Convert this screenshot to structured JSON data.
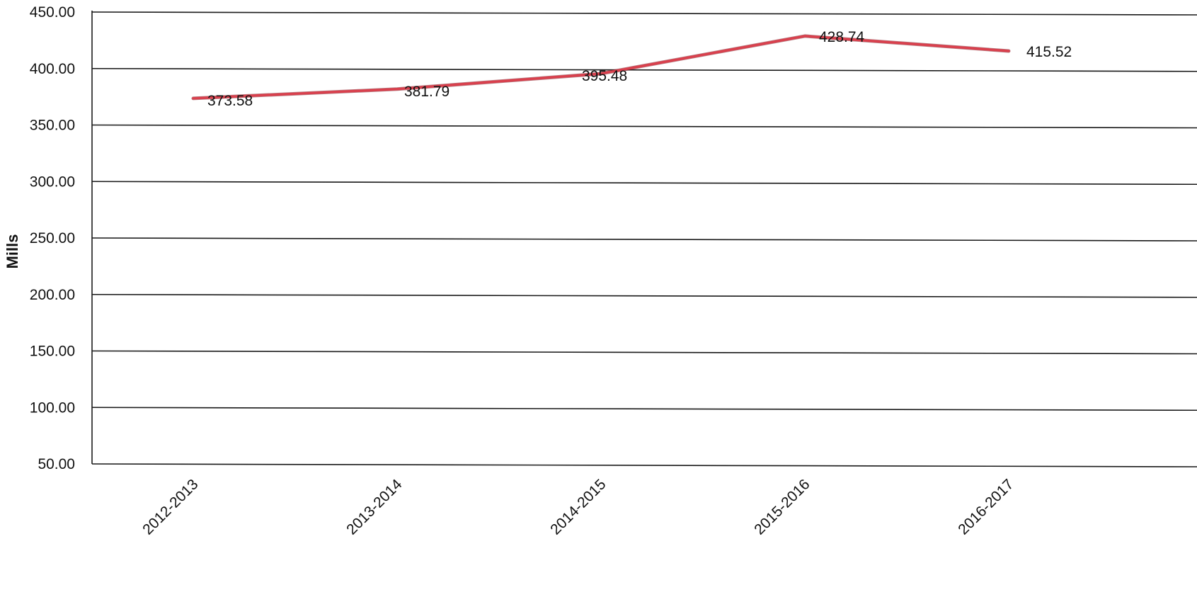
{
  "chart_data": {
    "type": "line",
    "title": "",
    "xlabel": "",
    "ylabel": "Mills",
    "ylim": [
      50,
      450
    ],
    "ytick_values": [
      50,
      100,
      150,
      200,
      250,
      300,
      350,
      400,
      450
    ],
    "ytick_labels": [
      "50.00",
      "100.00",
      "150.00",
      "200.00",
      "250.00",
      "300.00",
      "350.00",
      "400.00",
      "450.00"
    ],
    "categories": [
      "2012-2013",
      "2013-2014",
      "2014-2015",
      "2015-2016",
      "2016-2017"
    ],
    "series": [
      {
        "values": [
          373.58,
          381.79,
          395.48,
          428.74,
          415.52
        ],
        "labels": [
          "373.58",
          "381.79",
          "395.48",
          "428.74",
          "415.52"
        ],
        "color": "#d9404d"
      }
    ],
    "grid": true,
    "legend": "none"
  }
}
